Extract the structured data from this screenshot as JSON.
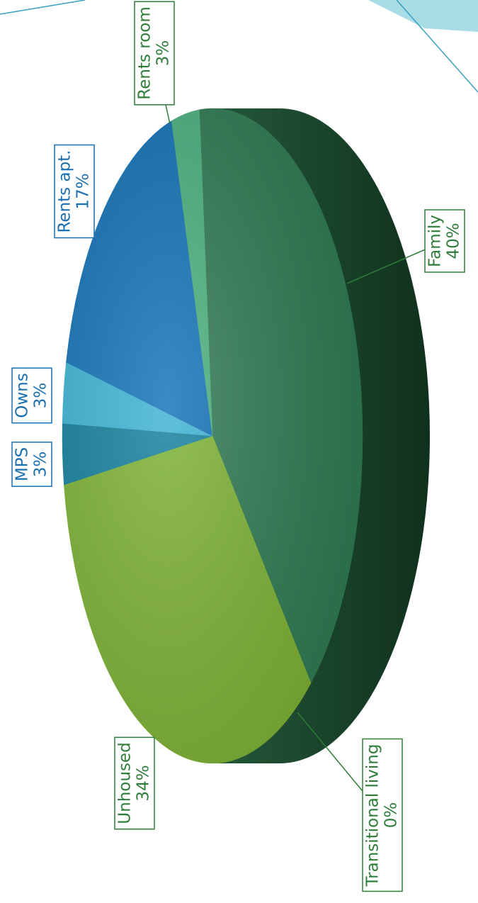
{
  "chart_data": {
    "type": "pie",
    "categories": [
      "Family",
      "Transitional living",
      "Unhoused",
      "MPS",
      "Owns",
      "Rents apt.",
      "Rents room"
    ],
    "values": [
      40,
      0,
      34,
      3,
      3,
      17,
      3
    ],
    "value_labels": [
      "40%",
      "0%",
      "34%",
      "3%",
      "3%",
      "17%",
      "3%"
    ],
    "colors": [
      "#2f7a52",
      "#5f9a2c",
      "#7db234",
      "#13809c",
      "#3cb3d4",
      "#1271b6",
      "#4bb07e"
    ],
    "label_colors": [
      "#2e7d3a",
      "#2e7d3a",
      "#2e7d3a",
      "#1a6fb0",
      "#1a6fb0",
      "#1a6fb0",
      "#2e7d3a"
    ]
  }
}
